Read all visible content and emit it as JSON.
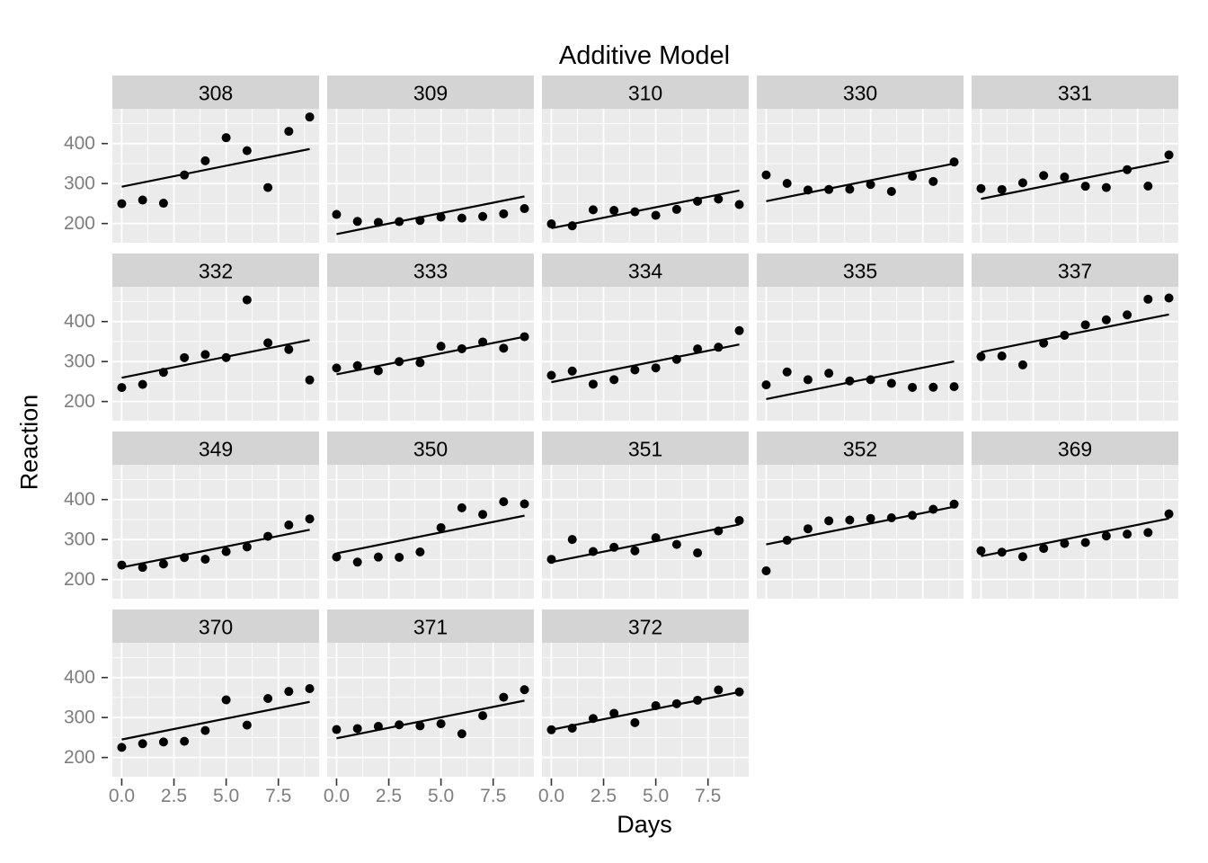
{
  "chart_data": {
    "type": "scatter",
    "title": "Additive Model",
    "xlabel": "Days",
    "ylabel": "Reaction",
    "x": [
      0,
      1,
      2,
      3,
      4,
      5,
      6,
      7,
      8,
      9
    ],
    "xlim": [
      -0.45,
      9.45
    ],
    "ylim": [
      152,
      487
    ],
    "x_tick_values": [
      0,
      2.5,
      5,
      7.5
    ],
    "x_tick_labels": [
      "0.0",
      "2.5",
      "5.0",
      "7.5"
    ],
    "x_minor_values": [
      1.25,
      3.75,
      6.25,
      8.75
    ],
    "y_tick_values": [
      200,
      300,
      400
    ],
    "y_tick_labels": [
      "200",
      "300",
      "400"
    ],
    "y_minor_values": [
      250,
      350,
      450
    ],
    "grid": true,
    "legend": "none",
    "facets": [
      {
        "subject": "308",
        "values": [
          249.6,
          258.7,
          250.8,
          321.4,
          356.9,
          414.7,
          382.2,
          290.1,
          430.6,
          466.4
        ],
        "fit": [
          292.2,
          386.4
        ]
      },
      {
        "subject": "309",
        "values": [
          222.7,
          205.3,
          203.0,
          204.7,
          207.7,
          216.0,
          213.6,
          217.7,
          224.3,
          237.3
        ],
        "fit": [
          173.6,
          267.8
        ]
      },
      {
        "subject": "310",
        "values": [
          199.1,
          194.3,
          234.3,
          232.8,
          229.3,
          220.5,
          235.4,
          255.8,
          261.0,
          247.5
        ],
        "fit": [
          188.3,
          282.5
        ]
      },
      {
        "subject": "330",
        "values": [
          321.5,
          300.4,
          283.9,
          285.1,
          285.8,
          297.6,
          280.2,
          318.3,
          305.3,
          354.0
        ],
        "fit": [
          255.8,
          350.0
        ]
      },
      {
        "subject": "331",
        "values": [
          287.6,
          285.0,
          301.8,
          320.1,
          316.3,
          293.3,
          290.1,
          334.8,
          293.7,
          371.6
        ],
        "fit": [
          261.6,
          355.8
        ]
      },
      {
        "subject": "332",
        "values": [
          234.9,
          242.8,
          273.0,
          309.8,
          317.5,
          310.0,
          454.2,
          346.8,
          330.3,
          253.9
        ],
        "fit": [
          259.6,
          353.8
        ]
      },
      {
        "subject": "333",
        "values": [
          283.8,
          289.6,
          276.8,
          299.8,
          297.2,
          338.2,
          332.0,
          348.8,
          333.4,
          362.0
        ],
        "fit": [
          267.9,
          362.1
        ]
      },
      {
        "subject": "334",
        "values": [
          265.5,
          276.2,
          243.4,
          254.7,
          279.0,
          284.2,
          305.5,
          331.5,
          335.7,
          377.3
        ],
        "fit": [
          248.4,
          342.6
        ]
      },
      {
        "subject": "335",
        "values": [
          241.6,
          273.9,
          254.5,
          270.8,
          251.5,
          254.6,
          245.5,
          235.3,
          235.8,
          237.2
        ],
        "fit": [
          206.1,
          300.3
        ]
      },
      {
        "subject": "337",
        "values": [
          312.4,
          313.8,
          291.6,
          346.1,
          365.7,
          391.8,
          404.3,
          416.7,
          455.9,
          458.9
        ],
        "fit": [
          323.6,
          417.8
        ]
      },
      {
        "subject": "349",
        "values": [
          236.1,
          230.3,
          238.9,
          254.9,
          250.7,
          269.8,
          281.6,
          308.1,
          336.3,
          351.6
        ],
        "fit": [
          230.2,
          324.4
        ]
      },
      {
        "subject": "350",
        "values": [
          256.3,
          243.5,
          256.2,
          255.5,
          268.9,
          329.7,
          379.4,
          362.9,
          394.5,
          389.1
        ],
        "fit": [
          265.5,
          359.7
        ]
      },
      {
        "subject": "351",
        "values": [
          250.5,
          300.1,
          269.9,
          280.6,
          271.8,
          304.6,
          287.7,
          266.6,
          321.5,
          347.6
        ],
        "fit": [
          243.5,
          337.7
        ]
      },
      {
        "subject": "352",
        "values": [
          221.7,
          298.2,
          326.9,
          346.9,
          348.7,
          352.8,
          354.4,
          360.4,
          375.6,
          388.5
        ],
        "fit": [
          287.8,
          382.0
        ]
      },
      {
        "subject": "369",
        "values": [
          271.9,
          268.4,
          257.2,
          277.7,
          290.1,
          292.5,
          308.8,
          313.5,
          317.4,
          364.1
        ],
        "fit": [
          258.4,
          352.6
        ]
      },
      {
        "subject": "370",
        "values": [
          225.3,
          234.5,
          238.9,
          240.5,
          267.5,
          344.2,
          281.1,
          347.6,
          365.2,
          372.2
        ],
        "fit": [
          245.0,
          339.2
        ]
      },
      {
        "subject": "371",
        "values": [
          269.9,
          272.4,
          277.9,
          281.8,
          279.2,
          284.5,
          259.3,
          304.6,
          350.8,
          369.5
        ],
        "fit": [
          248.1,
          342.3
        ]
      },
      {
        "subject": "372",
        "values": [
          269.4,
          273.5,
          297.6,
          310.6,
          287.2,
          329.6,
          334.5,
          343.2,
          369.1,
          364.1
        ],
        "fit": [
          269.5,
          363.7
        ]
      }
    ],
    "colors": {
      "point": "#000000",
      "fit_line": "#000000",
      "panel_bg": "#ebebeb",
      "strip_bg": "#d4d4d4",
      "strip_text": "#000000",
      "grid": "#ffffff",
      "tick_label": "#7e7e7e",
      "tick_mark": "#333333",
      "background": "#ffffff"
    }
  }
}
